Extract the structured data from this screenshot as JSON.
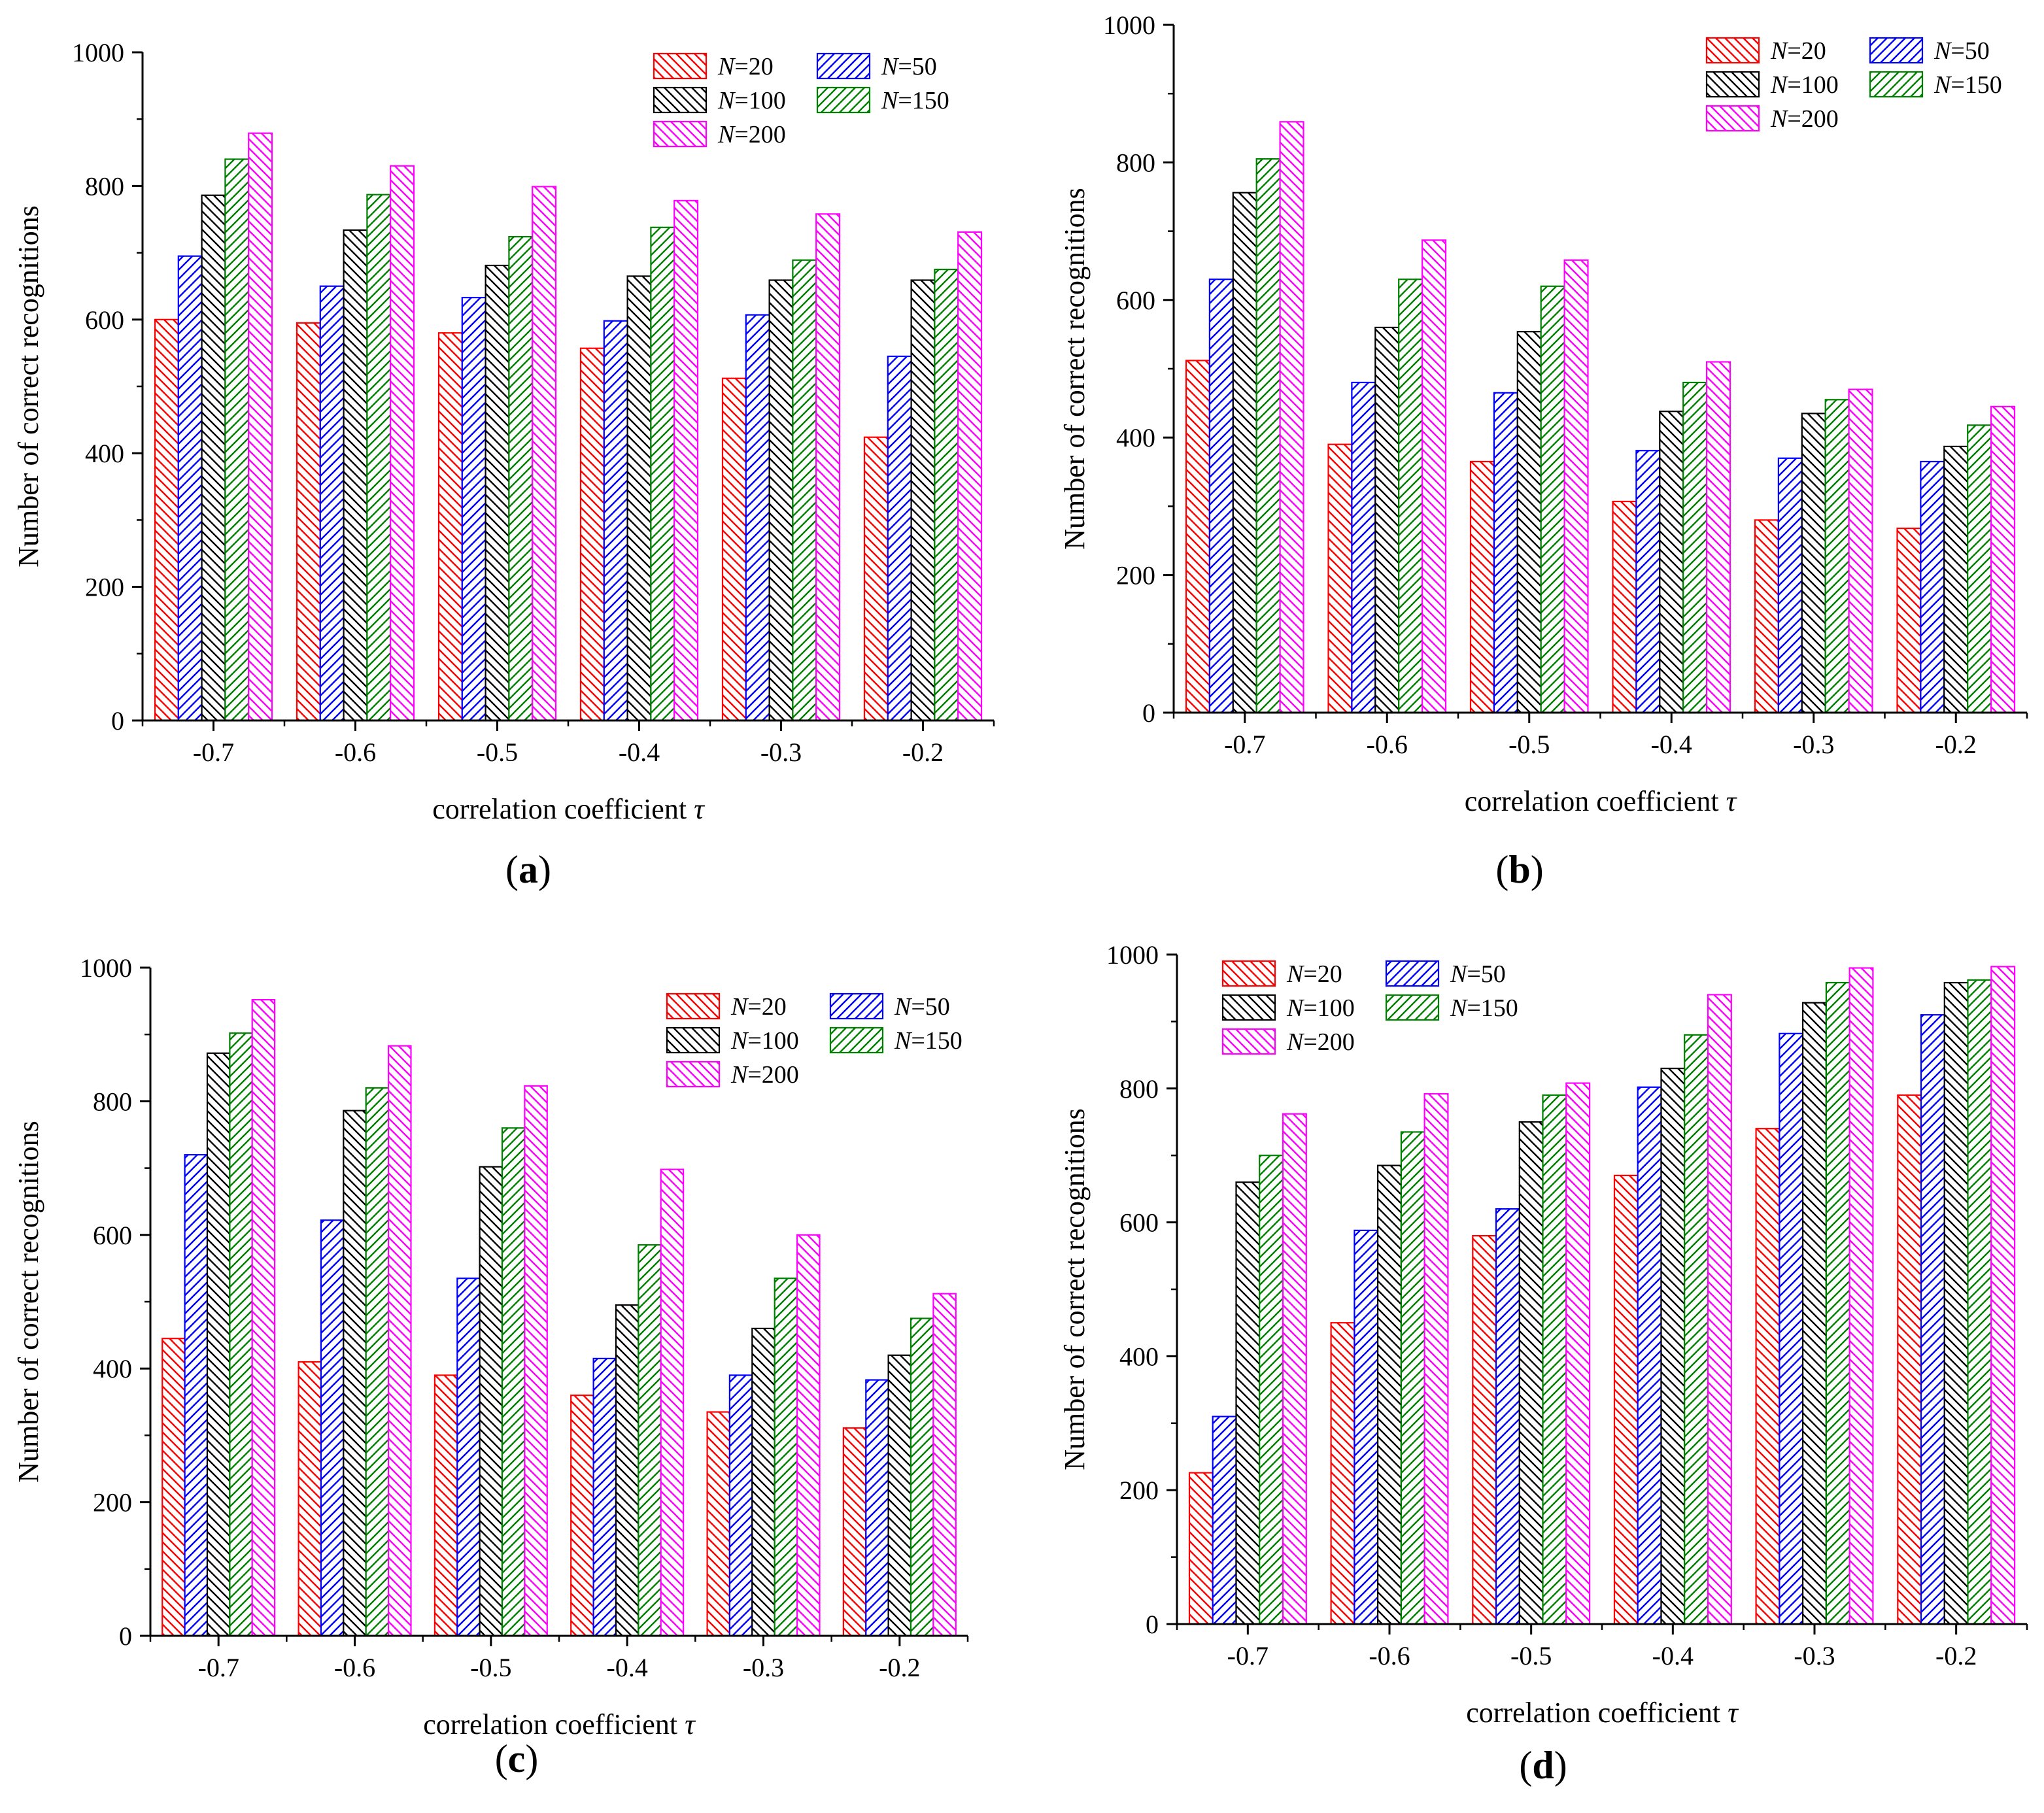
{
  "colors": {
    "N=20": "#ff0000",
    "N=50": "#0000ff",
    "N=100": "#000000",
    "N=150": "#008000",
    "N=200": "#ff00ff"
  },
  "legend_labels": [
    {
      "var": "N",
      "rest": "=20",
      "key": "N=20"
    },
    {
      "var": "N",
      "rest": "=50",
      "key": "N=50"
    },
    {
      "var": "N",
      "rest": "=100",
      "key": "N=100"
    },
    {
      "var": "N",
      "rest": "=150",
      "key": "N=150"
    },
    {
      "var": "N",
      "rest": "=200",
      "key": "N=200"
    }
  ],
  "chart_data": [
    {
      "panel": "(a)",
      "panel_letter": "a",
      "type": "bar",
      "xlabel": "correlation coefficient",
      "xlabel_symbol": "τ",
      "ylabel": "Number of correct recognitions",
      "ylim": [
        0,
        1000
      ],
      "yticks": [
        0,
        200,
        400,
        600,
        800,
        1000
      ],
      "legend_position": "top-right",
      "categories": [
        "-0.7",
        "-0.6",
        "-0.5",
        "-0.4",
        "-0.3",
        "-0.2"
      ],
      "series": [
        {
          "name": "N=20",
          "values": [
            600,
            595,
            580,
            557,
            512,
            424
          ]
        },
        {
          "name": "N=50",
          "values": [
            695,
            650,
            633,
            598,
            607,
            545
          ]
        },
        {
          "name": "N=100",
          "values": [
            786,
            734,
            681,
            665,
            659,
            659
          ]
        },
        {
          "name": "N=150",
          "values": [
            840,
            787,
            724,
            738,
            689,
            675
          ]
        },
        {
          "name": "N=200",
          "values": [
            879,
            830,
            799,
            778,
            758,
            731
          ]
        }
      ]
    },
    {
      "panel": "(b)",
      "panel_letter": "b",
      "type": "bar",
      "xlabel": "correlation coefficient",
      "xlabel_symbol": "τ",
      "ylabel": "Number of correct recognitions",
      "ylim": [
        0,
        1000
      ],
      "yticks": [
        0,
        200,
        400,
        600,
        800,
        1000
      ],
      "legend_position": "top-right",
      "categories": [
        "-0.7",
        "-0.6",
        "-0.5",
        "-0.4",
        "-0.3",
        "-0.2"
      ],
      "series": [
        {
          "name": "N=20",
          "values": [
            512,
            390,
            365,
            307,
            280,
            268
          ]
        },
        {
          "name": "N=50",
          "values": [
            630,
            480,
            465,
            381,
            370,
            365
          ]
        },
        {
          "name": "N=100",
          "values": [
            756,
            560,
            554,
            438,
            435,
            387
          ]
        },
        {
          "name": "N=150",
          "values": [
            805,
            630,
            620,
            480,
            455,
            418
          ]
        },
        {
          "name": "N=200",
          "values": [
            859,
            687,
            658,
            510,
            470,
            445
          ]
        }
      ]
    },
    {
      "panel": "(c)",
      "panel_letter": "c",
      "type": "bar",
      "xlabel": "correlation coefficient",
      "xlabel_symbol": "τ",
      "ylabel": "Number of correct recognitions",
      "ylim": [
        0,
        1000
      ],
      "yticks": [
        0,
        200,
        400,
        600,
        800,
        1000
      ],
      "legend_position": "top-right",
      "categories": [
        "-0.7",
        "-0.6",
        "-0.5",
        "-0.4",
        "-0.3",
        "-0.2"
      ],
      "series": [
        {
          "name": "N=20",
          "values": [
            445,
            410,
            390,
            360,
            335,
            311
          ]
        },
        {
          "name": "N=50",
          "values": [
            720,
            622,
            535,
            415,
            390,
            383
          ]
        },
        {
          "name": "N=100",
          "values": [
            872,
            786,
            702,
            495,
            460,
            420
          ]
        },
        {
          "name": "N=150",
          "values": [
            902,
            820,
            760,
            585,
            535,
            475
          ]
        },
        {
          "name": "N=200",
          "values": [
            952,
            883,
            823,
            698,
            600,
            512
          ]
        }
      ]
    },
    {
      "panel": "(d)",
      "panel_letter": "d",
      "type": "bar",
      "xlabel": "correlation coefficient",
      "xlabel_symbol": "τ",
      "ylabel": "Number of correct recognitions",
      "ylim": [
        0,
        1000
      ],
      "yticks": [
        0,
        200,
        400,
        600,
        800,
        1000
      ],
      "legend_position": "top-left",
      "categories": [
        "-0.7",
        "-0.6",
        "-0.5",
        "-0.4",
        "-0.3",
        "-0.2"
      ],
      "series": [
        {
          "name": "N=20",
          "values": [
            226,
            450,
            580,
            670,
            740,
            790
          ]
        },
        {
          "name": "N=50",
          "values": [
            310,
            588,
            620,
            802,
            882,
            910
          ]
        },
        {
          "name": "N=100",
          "values": [
            660,
            685,
            750,
            830,
            928,
            958
          ]
        },
        {
          "name": "N=150",
          "values": [
            700,
            735,
            790,
            880,
            958,
            962
          ]
        },
        {
          "name": "N=200",
          "values": [
            762,
            792,
            808,
            940,
            980,
            982
          ]
        }
      ]
    }
  ]
}
